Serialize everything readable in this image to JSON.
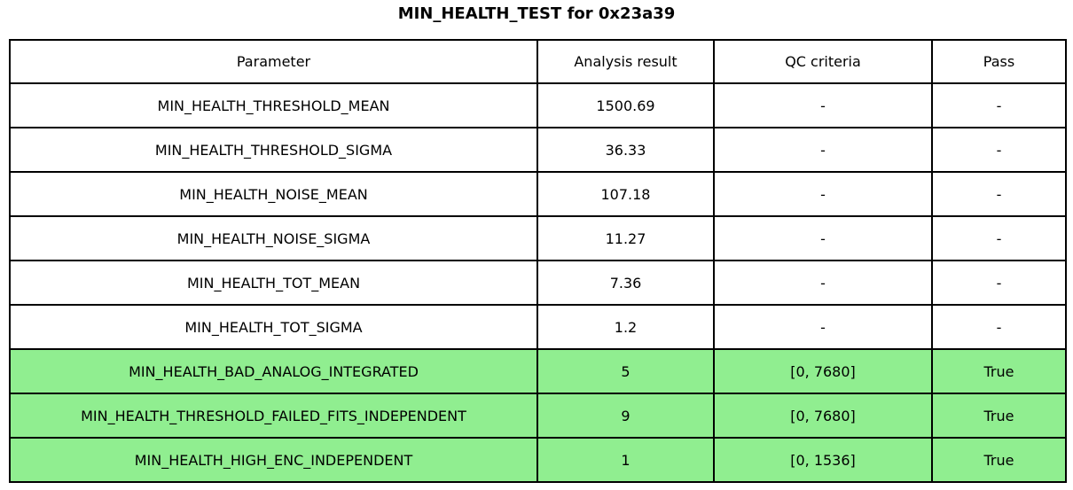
{
  "title": "MIN_HEALTH_TEST for 0x23a39",
  "highlight_color": "#90EE90",
  "chart_data": {
    "type": "table",
    "title": "MIN_HEALTH_TEST for 0x23a39",
    "headers": [
      "Parameter",
      "Analysis result",
      "QC criteria",
      "Pass"
    ],
    "rows": [
      {
        "parameter": "MIN_HEALTH_THRESHOLD_MEAN",
        "result": "1500.69",
        "qc": "-",
        "pass": "-",
        "highlight": false
      },
      {
        "parameter": "MIN_HEALTH_THRESHOLD_SIGMA",
        "result": "36.33",
        "qc": "-",
        "pass": "-",
        "highlight": false
      },
      {
        "parameter": "MIN_HEALTH_NOISE_MEAN",
        "result": "107.18",
        "qc": "-",
        "pass": "-",
        "highlight": false
      },
      {
        "parameter": "MIN_HEALTH_NOISE_SIGMA",
        "result": "11.27",
        "qc": "-",
        "pass": "-",
        "highlight": false
      },
      {
        "parameter": "MIN_HEALTH_TOT_MEAN",
        "result": "7.36",
        "qc": "-",
        "pass": "-",
        "highlight": false
      },
      {
        "parameter": "MIN_HEALTH_TOT_SIGMA",
        "result": "1.2",
        "qc": "-",
        "pass": "-",
        "highlight": false
      },
      {
        "parameter": "MIN_HEALTH_BAD_ANALOG_INTEGRATED",
        "result": "5",
        "qc": "[0, 7680]",
        "pass": "True",
        "highlight": true
      },
      {
        "parameter": "MIN_HEALTH_THRESHOLD_FAILED_FITS_INDEPENDENT",
        "result": "9",
        "qc": "[0, 7680]",
        "pass": "True",
        "highlight": true
      },
      {
        "parameter": "MIN_HEALTH_HIGH_ENC_INDEPENDENT",
        "result": "1",
        "qc": "[0, 1536]",
        "pass": "True",
        "highlight": true
      }
    ]
  }
}
